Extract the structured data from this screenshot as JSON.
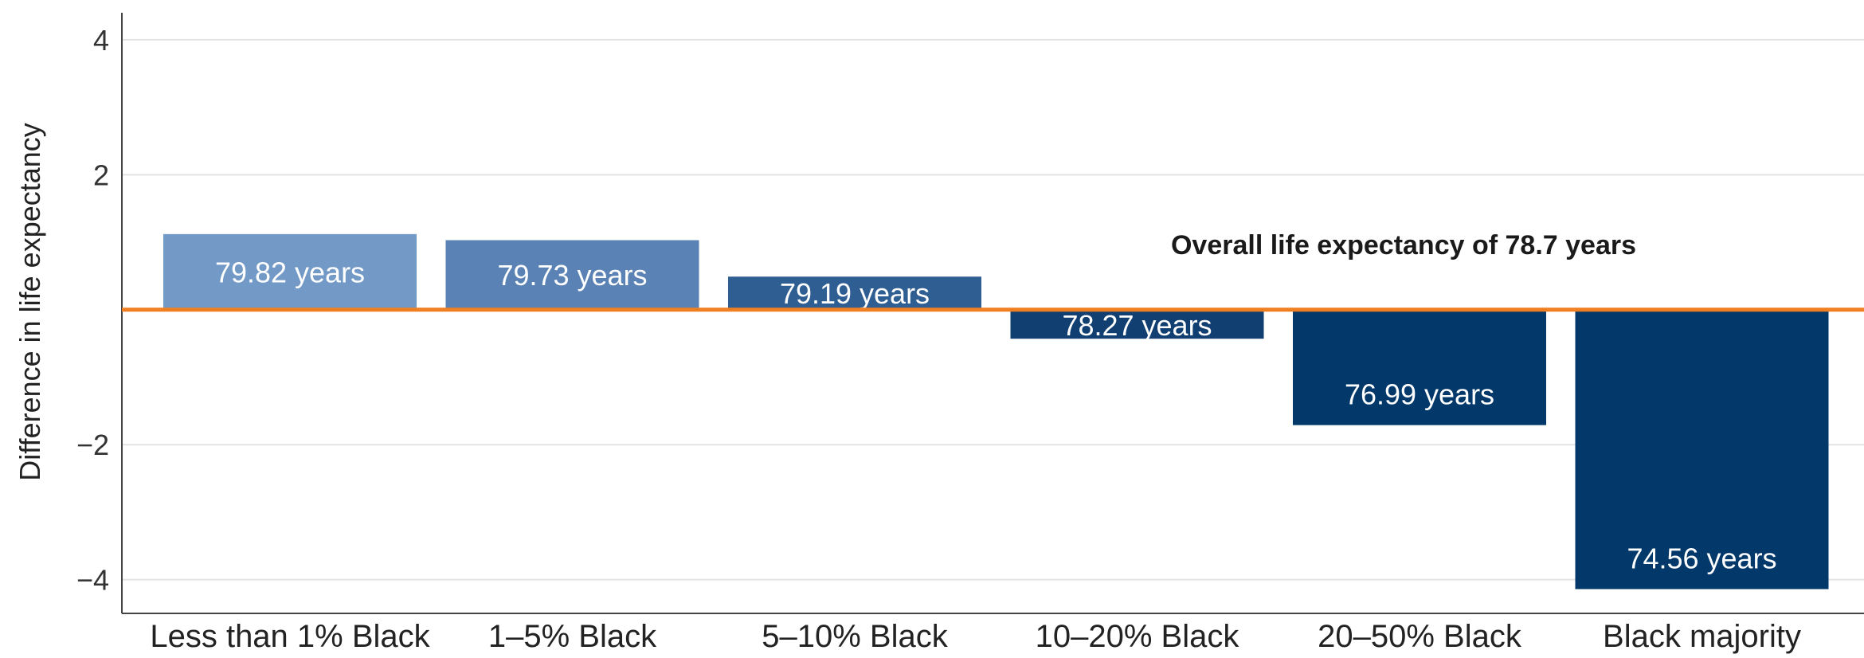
{
  "chart_data": {
    "type": "bar",
    "ylabel": "Difference in life expectancy",
    "xlabel": "",
    "title": "",
    "ylim": [
      -4.5,
      4.4
    ],
    "yticks": [
      4,
      2,
      -2,
      -4
    ],
    "ytick_labels": [
      "4",
      "2",
      "−2",
      "−4"
    ],
    "grid": true,
    "baseline": {
      "value": 0,
      "label": "Overall life expectancy of 78.7 years",
      "color": "#f07f22"
    },
    "categories": [
      "Less than 1% Black",
      "1–5% Black",
      "5–10% Black",
      "10–20% Black",
      "20–50% Black",
      "Black majority"
    ],
    "values": [
      1.12,
      1.03,
      0.49,
      -0.43,
      -1.71,
      -4.14
    ],
    "data_labels": [
      "79.82 years",
      "79.73 years",
      "79.19 years",
      "78.27 years",
      "76.99 years",
      "74.56 years"
    ],
    "bar_colors": [
      "#7399c6",
      "#5a82b4",
      "#2f5e93",
      "#123f71",
      "#03386b",
      "#03386b"
    ]
  }
}
